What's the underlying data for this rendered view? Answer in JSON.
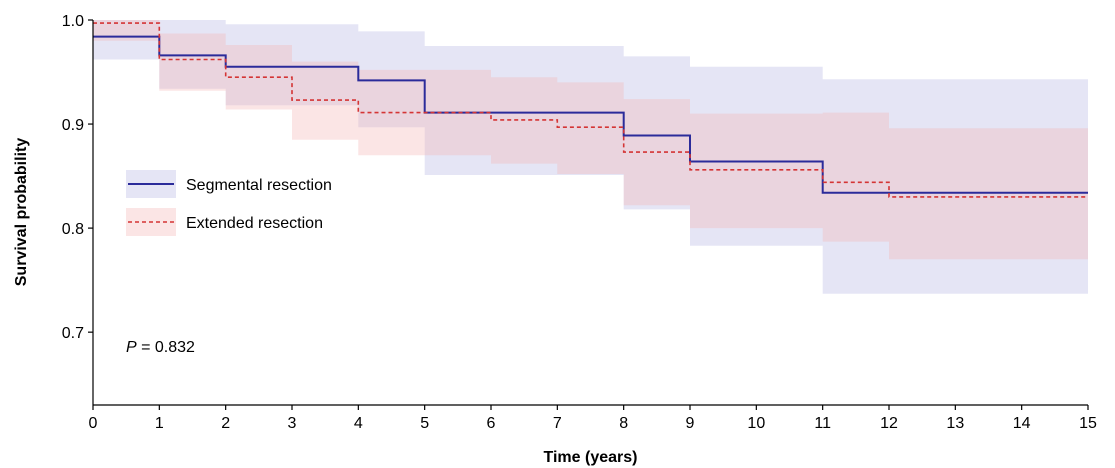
{
  "chart_data": {
    "type": "line",
    "subtype": "kaplan-meier-step",
    "xlabel": "Time (years)",
    "ylabel": "Survival probability",
    "xlim": [
      0,
      15
    ],
    "ylim": [
      0.63,
      1.0
    ],
    "xticks": [
      0,
      1,
      2,
      3,
      4,
      5,
      6,
      7,
      8,
      9,
      10,
      11,
      12,
      13,
      14,
      15
    ],
    "yticks": [
      0.7,
      0.8,
      0.9,
      1.0
    ],
    "ytick_labels": [
      "0.7",
      "0.8",
      "0.9",
      "1.0"
    ],
    "grid": false,
    "legend_position": "left",
    "annotation": {
      "italic": "P",
      "rest": " = 0.832"
    },
    "series": [
      {
        "name": "Segmental resection",
        "color": "#2b2b9a",
        "line_style": "solid",
        "band_color": "#aaaadd",
        "x": [
          0,
          1,
          2,
          4,
          5,
          8,
          9,
          11,
          15
        ],
        "y": [
          0.984,
          0.966,
          0.955,
          0.942,
          0.911,
          0.889,
          0.864,
          0.834,
          0.834
        ],
        "ci_lower": [
          0.962,
          0.934,
          0.918,
          0.897,
          0.851,
          0.818,
          0.783,
          0.737,
          0.737
        ],
        "ci_upper": [
          1.0,
          1.0,
          0.996,
          0.989,
          0.975,
          0.965,
          0.955,
          0.943,
          0.943
        ]
      },
      {
        "name": "Extended resection",
        "color": "#d43535",
        "line_style": "dashed",
        "band_color": "#f4b5b5",
        "x": [
          0,
          1,
          2,
          3,
          4,
          6,
          7,
          8,
          9,
          11,
          12,
          15
        ],
        "y": [
          0.997,
          0.962,
          0.945,
          0.923,
          0.911,
          0.904,
          0.897,
          0.873,
          0.856,
          0.844,
          0.83,
          0.83
        ],
        "ci_lower": [
          0.98,
          0.932,
          0.914,
          0.885,
          0.87,
          0.862,
          0.852,
          0.822,
          0.8,
          0.787,
          0.77,
          0.77
        ],
        "ci_upper": [
          1.0,
          0.987,
          0.976,
          0.96,
          0.952,
          0.945,
          0.94,
          0.924,
          0.91,
          0.911,
          0.896,
          0.896
        ]
      }
    ]
  }
}
